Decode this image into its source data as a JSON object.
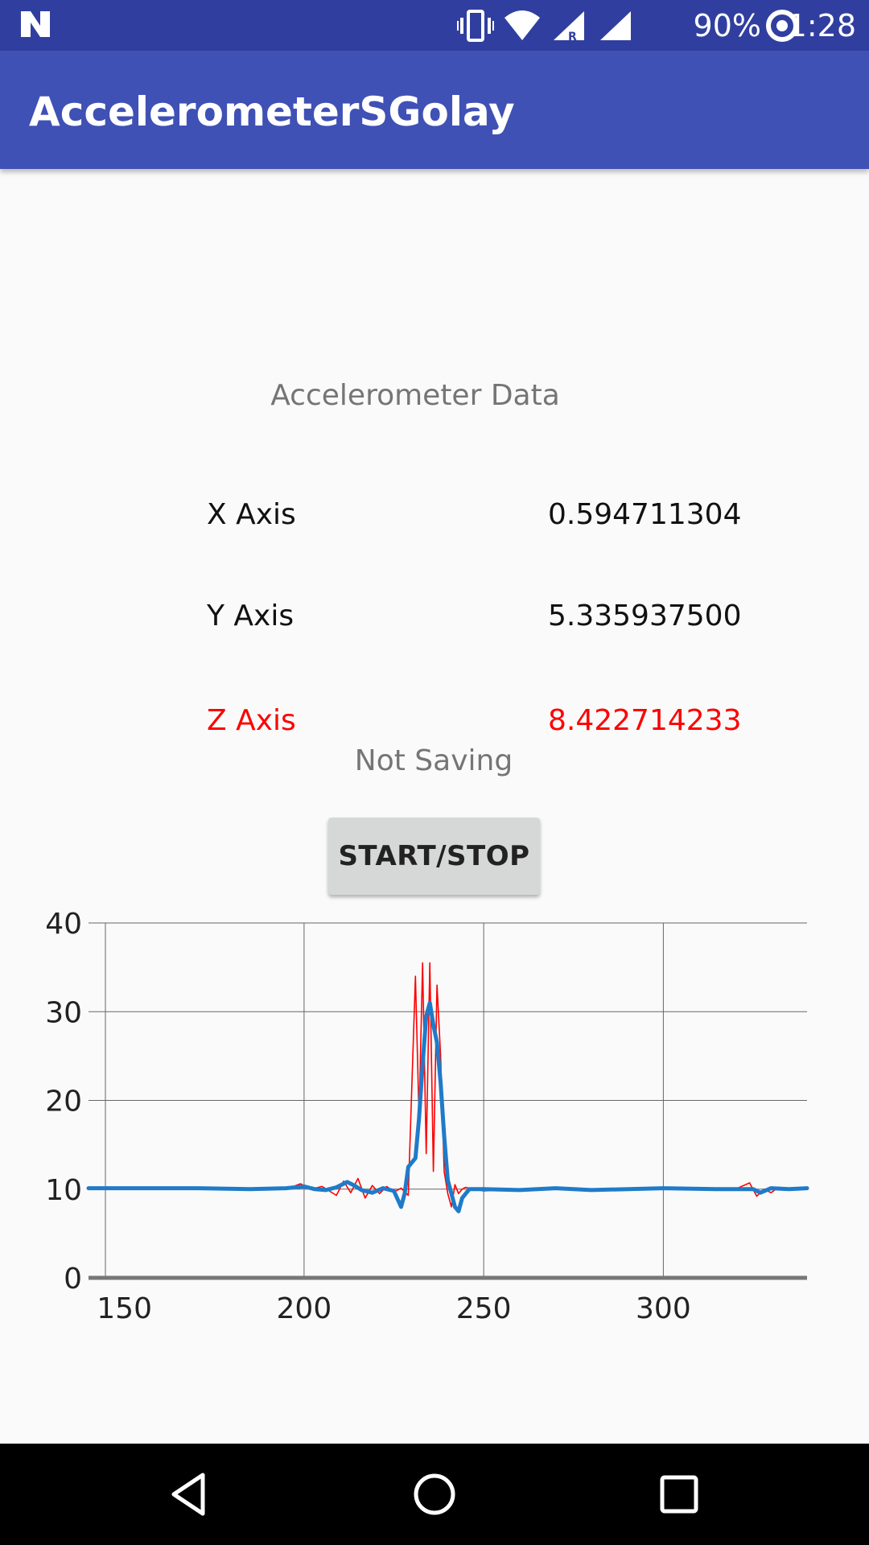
{
  "status_bar": {
    "time": "1:28",
    "battery": "90%",
    "icons": [
      "notification-n-icon",
      "vibrate-icon",
      "wifi-icon",
      "signal-roaming-icon",
      "signal-icon",
      "data-saver-icon"
    ]
  },
  "app_bar": {
    "title": "AccelerometerSGolay"
  },
  "main": {
    "section_title": "Accelerometer Data",
    "axes": [
      {
        "label": "X Axis",
        "value": "0.594711304"
      },
      {
        "label": "Y Axis",
        "value": "5.335937500"
      },
      {
        "label": "Z Axis",
        "value": "8.422714233",
        "color": "#ff0000"
      }
    ],
    "saving_status": "Not Saving",
    "start_stop_label": "START/STOP"
  },
  "chart_data": {
    "type": "line",
    "title": "",
    "xlabel": "",
    "ylabel": "",
    "xlim": [
      140,
      340
    ],
    "ylim": [
      0,
      40
    ],
    "x_ticks": [
      150,
      200,
      250,
      300
    ],
    "y_ticks": [
      0,
      10,
      20,
      30,
      40
    ],
    "x_tick_labels": [
      "150",
      "200",
      "250",
      "300"
    ],
    "y_tick_labels": [
      "0",
      "10",
      "20",
      "30",
      "40"
    ],
    "grid": true,
    "series": [
      {
        "color": "#ff0000",
        "x": [
          140,
          180,
          190,
          195,
          199,
          202,
          205,
          207,
          209,
          211,
          213,
          215,
          217,
          219,
          221,
          223,
          225,
          227,
          229,
          231,
          232,
          233,
          234,
          235,
          236,
          237,
          238,
          239,
          240,
          241,
          242,
          243,
          244,
          245,
          247,
          250,
          260,
          290,
          300,
          310,
          320,
          324,
          326,
          328,
          330,
          332,
          335,
          340
        ],
        "y": [
          10.1,
          10.1,
          10.1,
          10.0,
          10.6,
          10.0,
          10.3,
          9.8,
          9.3,
          10.9,
          9.6,
          11.2,
          9.0,
          10.4,
          9.5,
          10.3,
          9.7,
          10.1,
          9.3,
          34.0,
          18.0,
          35.5,
          14.0,
          35.5,
          12.0,
          33.0,
          25.0,
          12.0,
          9.5,
          8.0,
          10.5,
          9.5,
          10.0,
          10.2,
          10.0,
          9.8,
          10.0,
          10.0,
          10.1,
          10.1,
          10.0,
          10.7,
          9.2,
          10.0,
          9.6,
          10.2,
          10.1,
          10.1
        ]
      },
      {
        "color": "#1f7bc9",
        "x": [
          140,
          170,
          185,
          195,
          200,
          203,
          206,
          209,
          212,
          214,
          216,
          219,
          222,
          225,
          227,
          228,
          229,
          231,
          232,
          233,
          234,
          235,
          236,
          237,
          238,
          239,
          240,
          241,
          242,
          243,
          244,
          246,
          250,
          260,
          270,
          280,
          300,
          315,
          325,
          327,
          330,
          335,
          340
        ],
        "y": [
          10.1,
          10.1,
          10.0,
          10.1,
          10.3,
          10.0,
          9.9,
          10.2,
          10.8,
          10.4,
          9.9,
          9.6,
          10.1,
          9.8,
          8.0,
          9.5,
          12.5,
          13.5,
          18.0,
          24.0,
          29.5,
          31.0,
          28.5,
          26.5,
          22.0,
          16.0,
          11.0,
          9.5,
          8.0,
          7.5,
          9.0,
          10.0,
          10.0,
          9.9,
          10.1,
          9.9,
          10.1,
          10.0,
          10.0,
          9.6,
          10.1,
          10.0,
          10.1
        ]
      }
    ]
  }
}
